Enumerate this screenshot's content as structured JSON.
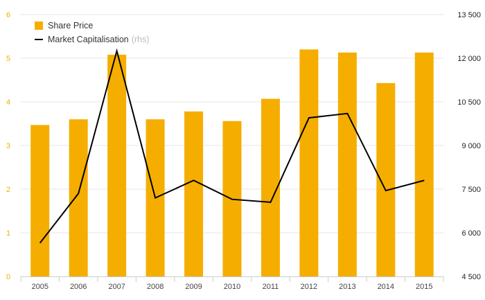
{
  "chart_data": {
    "type": "bar",
    "categories": [
      "2005",
      "2006",
      "2007",
      "2008",
      "2009",
      "2010",
      "2011",
      "2012",
      "2013",
      "2014",
      "2015"
    ],
    "series": [
      {
        "name": "Share Price",
        "type": "bar",
        "axis": "left",
        "values": [
          3.47,
          3.6,
          5.08,
          3.6,
          3.78,
          3.56,
          4.07,
          5.2,
          5.13,
          4.43,
          5.13
        ],
        "color": "#f5ae00"
      },
      {
        "name": "Market Capitalisation",
        "name_suffix": "(rhs)",
        "type": "line",
        "axis": "right",
        "values": [
          5650,
          7350,
          12250,
          7200,
          7800,
          7150,
          7050,
          9950,
          10100,
          7450,
          7800
        ],
        "color": "#000000"
      }
    ],
    "y_left": {
      "ylim": [
        0,
        6
      ],
      "ticks": [
        "0",
        "1",
        "2",
        "3",
        "4",
        "5",
        "6"
      ],
      "tick_color": "#f5ae00"
    },
    "y_right": {
      "ylim": [
        4500,
        13500
      ],
      "ticks": [
        "4 500",
        "6 000",
        "7 500",
        "9 000",
        "10 500",
        "12 000",
        "13 500"
      ]
    },
    "grid": true,
    "legend": "top-left"
  }
}
